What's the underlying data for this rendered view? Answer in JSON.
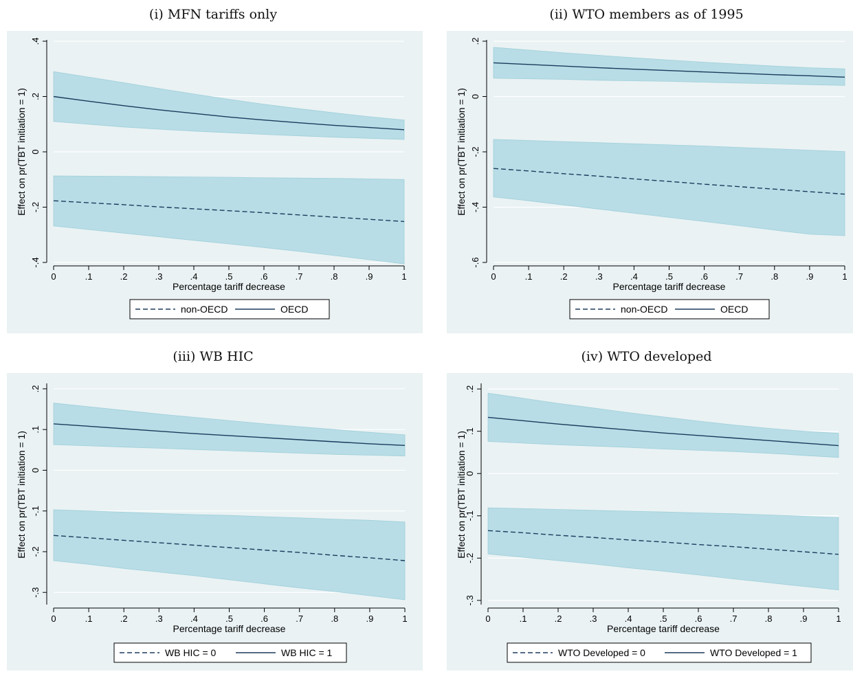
{
  "colors": {
    "plot_background": "#eaf2f3",
    "confidence_band": "#b8dde6",
    "line": "#1b3a5c",
    "grid": "#ffffff"
  },
  "chart_data": [
    {
      "type": "line",
      "title": "(i) MFN tariffs only",
      "xlabel": "Percentage tariff decrease",
      "ylabel": "Effect on pr(TBT initiation = 1)",
      "xlim": [
        0,
        1
      ],
      "ylim": [
        -0.4,
        0.4
      ],
      "x_ticks": [
        0,
        0.1,
        0.2,
        0.3,
        0.4,
        0.5,
        0.6,
        0.7,
        0.8,
        0.9,
        1
      ],
      "x_tick_labels": [
        "0",
        ".1",
        ".2",
        ".3",
        ".4",
        ".5",
        ".6",
        ".7",
        ".8",
        ".9",
        "1"
      ],
      "y_ticks": [
        -0.4,
        -0.2,
        0,
        0.2,
        0.4
      ],
      "y_tick_labels": [
        "-.4",
        "-.2",
        "0",
        ".2",
        ".4"
      ],
      "grid": true,
      "legend_position": "bottom",
      "x": [
        0,
        0.1,
        0.2,
        0.3,
        0.4,
        0.5,
        0.6,
        0.7,
        0.8,
        0.9,
        1
      ],
      "series": [
        {
          "name": "non-OECD",
          "style": "dashed",
          "values": [
            -0.177,
            -0.184,
            -0.191,
            -0.199,
            -0.206,
            -0.213,
            -0.22,
            -0.228,
            -0.236,
            -0.244,
            -0.252
          ],
          "ci_upper": [
            -0.087,
            -0.088,
            -0.089,
            -0.09,
            -0.091,
            -0.092,
            -0.094,
            -0.095,
            -0.096,
            -0.098,
            -0.1
          ],
          "ci_lower": [
            -0.268,
            -0.281,
            -0.294,
            -0.307,
            -0.32,
            -0.333,
            -0.346,
            -0.36,
            -0.375,
            -0.39,
            -0.405
          ]
        },
        {
          "name": "OECD",
          "style": "solid",
          "values": [
            0.2,
            0.183,
            0.167,
            0.152,
            0.139,
            0.126,
            0.115,
            0.105,
            0.096,
            0.088,
            0.08
          ],
          "ci_upper": [
            0.29,
            0.27,
            0.25,
            0.229,
            0.209,
            0.19,
            0.172,
            0.156,
            0.141,
            0.127,
            0.115
          ],
          "ci_lower": [
            0.11,
            0.1,
            0.09,
            0.082,
            0.075,
            0.069,
            0.063,
            0.058,
            0.053,
            0.049,
            0.045
          ]
        }
      ]
    },
    {
      "type": "line",
      "title": "(ii) WTO members as of 1995",
      "xlabel": "Percentage tariff decrease",
      "ylabel": "Effect on pr(TBT initiation = 1)",
      "xlim": [
        0,
        1
      ],
      "ylim": [
        -0.6,
        0.2
      ],
      "x_ticks": [
        0,
        0.1,
        0.2,
        0.3,
        0.4,
        0.5,
        0.6,
        0.7,
        0.8,
        0.9,
        1
      ],
      "x_tick_labels": [
        "0",
        ".1",
        ".2",
        ".3",
        ".4",
        ".5",
        ".6",
        ".7",
        ".8",
        ".9",
        "1"
      ],
      "y_ticks": [
        -0.6,
        -0.4,
        -0.2,
        0,
        0.2
      ],
      "y_tick_labels": [
        "-.6",
        "-.4",
        "-.2",
        "0",
        ".2"
      ],
      "grid": true,
      "legend_position": "bottom",
      "x": [
        0,
        0.1,
        0.2,
        0.3,
        0.4,
        0.5,
        0.6,
        0.7,
        0.8,
        0.9,
        1
      ],
      "series": [
        {
          "name": "non-OECD",
          "style": "dashed",
          "values": [
            -0.26,
            -0.269,
            -0.279,
            -0.288,
            -0.298,
            -0.307,
            -0.317,
            -0.326,
            -0.335,
            -0.344,
            -0.353
          ],
          "ci_upper": [
            -0.155,
            -0.159,
            -0.163,
            -0.167,
            -0.171,
            -0.175,
            -0.179,
            -0.184,
            -0.189,
            -0.194,
            -0.199
          ],
          "ci_lower": [
            -0.363,
            -0.377,
            -0.392,
            -0.407,
            -0.422,
            -0.437,
            -0.452,
            -0.467,
            -0.483,
            -0.498,
            -0.503
          ]
        },
        {
          "name": "OECD",
          "style": "solid",
          "values": [
            0.122,
            0.116,
            0.11,
            0.104,
            0.099,
            0.094,
            0.089,
            0.084,
            0.079,
            0.075,
            0.07
          ],
          "ci_upper": [
            0.178,
            0.168,
            0.158,
            0.149,
            0.14,
            0.132,
            0.124,
            0.117,
            0.11,
            0.104,
            0.1
          ],
          "ci_lower": [
            0.066,
            0.064,
            0.062,
            0.059,
            0.057,
            0.055,
            0.052,
            0.049,
            0.046,
            0.043,
            0.04
          ]
        }
      ]
    },
    {
      "type": "line",
      "title": "(iii) WB HIC",
      "xlabel": "Percentage tariff decrease",
      "ylabel": "Effect on pr(TBT initiation = 1)",
      "xlim": [
        0,
        1
      ],
      "ylim": [
        -0.33,
        0.21
      ],
      "x_ticks": [
        0,
        0.1,
        0.2,
        0.3,
        0.4,
        0.5,
        0.6,
        0.7,
        0.8,
        0.9,
        1
      ],
      "x_tick_labels": [
        "0",
        ".1",
        ".2",
        ".3",
        ".4",
        ".5",
        ".6",
        ".7",
        ".8",
        ".9",
        "1"
      ],
      "y_ticks": [
        -0.3,
        -0.2,
        -0.1,
        0,
        0.1,
        0.2
      ],
      "y_tick_labels": [
        "-.3",
        "-.2",
        "-.1",
        "0",
        ".1",
        ".2"
      ],
      "grid": true,
      "legend_position": "bottom",
      "x": [
        0,
        0.1,
        0.2,
        0.3,
        0.4,
        0.5,
        0.6,
        0.7,
        0.8,
        0.9,
        1
      ],
      "series": [
        {
          "name": "WB HIC = 0",
          "style": "dashed",
          "values": [
            -0.16,
            -0.166,
            -0.172,
            -0.178,
            -0.184,
            -0.19,
            -0.196,
            -0.202,
            -0.209,
            -0.215,
            -0.222
          ],
          "ci_upper": [
            -0.097,
            -0.1,
            -0.103,
            -0.106,
            -0.109,
            -0.111,
            -0.114,
            -0.117,
            -0.12,
            -0.123,
            -0.127
          ],
          "ci_lower": [
            -0.222,
            -0.231,
            -0.241,
            -0.25,
            -0.259,
            -0.269,
            -0.279,
            -0.289,
            -0.298,
            -0.308,
            -0.318
          ]
        },
        {
          "name": "WB HIC = 1",
          "style": "solid",
          "values": [
            0.114,
            0.108,
            0.102,
            0.096,
            0.09,
            0.085,
            0.08,
            0.075,
            0.07,
            0.065,
            0.061
          ],
          "ci_upper": [
            0.165,
            0.156,
            0.147,
            0.138,
            0.13,
            0.122,
            0.114,
            0.107,
            0.1,
            0.093,
            0.087
          ],
          "ci_lower": [
            0.063,
            0.06,
            0.057,
            0.054,
            0.051,
            0.048,
            0.045,
            0.042,
            0.039,
            0.037,
            0.035
          ]
        }
      ]
    },
    {
      "type": "line",
      "title": "(iv) WTO developed",
      "xlabel": "Percentage tariff decrease",
      "ylabel": "Effect on pr(TBT initiation = 1)",
      "xlim": [
        0,
        1
      ],
      "ylim": [
        -0.31,
        0.21
      ],
      "x_ticks": [
        0,
        0.1,
        0.2,
        0.3,
        0.4,
        0.5,
        0.6,
        0.7,
        0.8,
        0.9,
        1
      ],
      "x_tick_labels": [
        "0",
        ".1",
        ".2",
        ".3",
        ".4",
        ".5",
        ".6",
        ".7",
        ".8",
        ".9",
        "1"
      ],
      "y_ticks": [
        -0.3,
        -0.2,
        -0.1,
        0,
        0.1,
        0.2
      ],
      "y_tick_labels": [
        "-.3",
        "-.2",
        "-.1",
        "0",
        ".1",
        ".2"
      ],
      "grid": true,
      "legend_position": "bottom",
      "x": [
        0,
        0.1,
        0.2,
        0.3,
        0.4,
        0.5,
        0.6,
        0.7,
        0.8,
        0.9,
        1
      ],
      "series": [
        {
          "name": "WTO Developed = 0",
          "style": "dashed",
          "values": [
            -0.135,
            -0.14,
            -0.146,
            -0.151,
            -0.157,
            -0.162,
            -0.168,
            -0.173,
            -0.179,
            -0.185,
            -0.191
          ],
          "ci_upper": [
            -0.081,
            -0.083,
            -0.085,
            -0.087,
            -0.089,
            -0.091,
            -0.093,
            -0.095,
            -0.098,
            -0.101,
            -0.104
          ],
          "ci_lower": [
            -0.19,
            -0.198,
            -0.206,
            -0.214,
            -0.223,
            -0.231,
            -0.24,
            -0.249,
            -0.258,
            -0.267,
            -0.275
          ]
        },
        {
          "name": "WTO Developed = 1",
          "style": "solid",
          "values": [
            0.133,
            0.125,
            0.117,
            0.11,
            0.103,
            0.096,
            0.09,
            0.084,
            0.078,
            0.072,
            0.066
          ],
          "ci_upper": [
            0.19,
            0.178,
            0.166,
            0.155,
            0.144,
            0.134,
            0.124,
            0.115,
            0.107,
            0.1,
            0.095
          ],
          "ci_lower": [
            0.076,
            0.072,
            0.068,
            0.065,
            0.062,
            0.058,
            0.055,
            0.052,
            0.048,
            0.043,
            0.038
          ]
        }
      ]
    }
  ]
}
